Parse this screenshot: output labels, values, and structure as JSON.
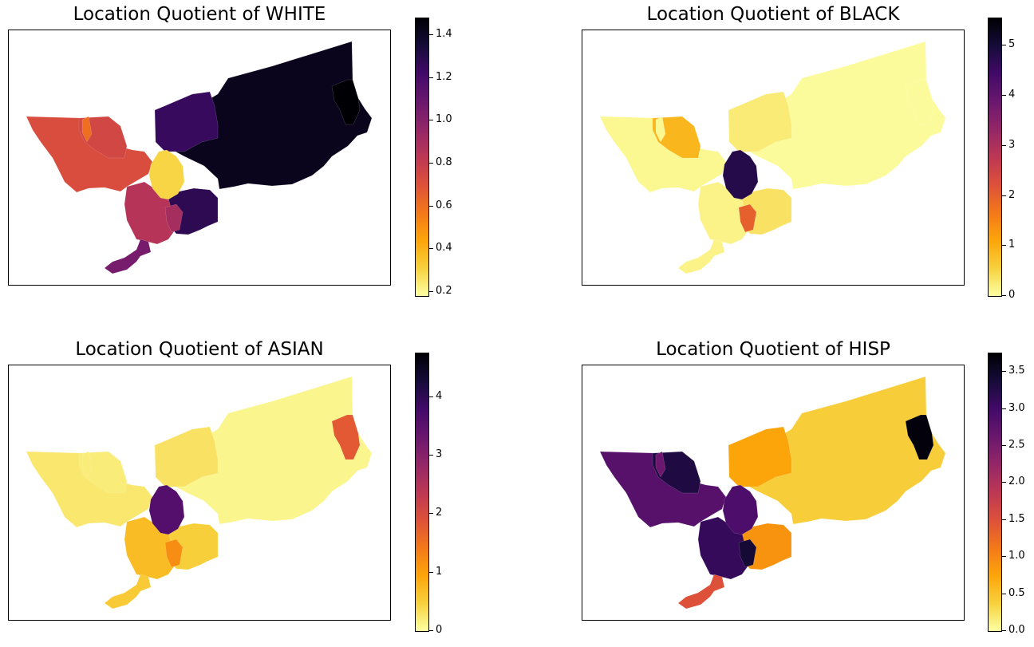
{
  "colormap": [
    "#fcffa4",
    "#f7d13d",
    "#fca50a",
    "#f37819",
    "#dd513a",
    "#bc3754",
    "#932667",
    "#6a176e",
    "#420a68",
    "#160b39",
    "#000004"
  ],
  "chart_data": [
    {
      "type": "choropleth",
      "title": "Location Quotient of WHITE",
      "variable": "WHITE",
      "colorbar": {
        "min": 0.18,
        "max": 1.48,
        "ticks": [
          0.2,
          0.4,
          0.6,
          0.8,
          1.0,
          1.2,
          1.4
        ],
        "tick_labels": [
          "0.2",
          "0.4",
          "0.6",
          "0.8",
          "1.0",
          "1.2",
          "1.4"
        ]
      },
      "regions": {
        "east": 1.42,
        "northeast_corner": 1.48,
        "center_north": 1.25,
        "center_south": 1.28,
        "west": 0.72,
        "west_mid": 0.75,
        "south_delta": 0.85,
        "south_tip": 1.05,
        "core": 0.3,
        "south_center": 0.9,
        "west_edge_strip": 0.6
      }
    },
    {
      "type": "choropleth",
      "title": "Location Quotient of BLACK",
      "variable": "BLACK",
      "colorbar": {
        "min": 0,
        "max": 5.55,
        "ticks": [
          0,
          1,
          2,
          3,
          4,
          5
        ],
        "tick_labels": [
          "0",
          "1",
          "2",
          "3",
          "4",
          "5"
        ]
      },
      "regions": {
        "east": 0.05,
        "northeast_corner": 0.05,
        "center_north": 0.25,
        "center_south": 0.35,
        "west": 0.1,
        "west_mid": 0.9,
        "south_delta": 0.15,
        "south_tip": 0.15,
        "core": 4.8,
        "south_center": 2.0,
        "west_edge_strip": 0.1
      }
    },
    {
      "type": "choropleth",
      "title": "Location Quotient of ASIAN",
      "variable": "ASIAN",
      "colorbar": {
        "min": 0,
        "max": 4.75,
        "ticks": [
          0,
          1,
          2,
          3,
          4
        ],
        "tick_labels": [
          "0",
          "1",
          "2",
          "3",
          "4"
        ]
      },
      "regions": {
        "east": 0.1,
        "northeast_corner": 1.8,
        "center_north": 0.3,
        "center_south": 0.5,
        "west": 0.25,
        "west_mid": 0.2,
        "south_delta": 0.7,
        "south_tip": 0.55,
        "core": 3.6,
        "south_center": 1.2,
        "west_edge_strip": 0.2
      }
    },
    {
      "type": "choropleth",
      "title": "Location Quotient of HISP",
      "variable": "HISP",
      "colorbar": {
        "min": 0,
        "max": 3.75,
        "ticks": [
          0,
          0.5,
          1.0,
          1.5,
          2.0,
          2.5,
          3.0,
          3.5
        ],
        "tick_labels": [
          "0.0",
          "0.5",
          "1.0",
          "1.5",
          "2.0",
          "2.5",
          "3.0",
          "3.5"
        ]
      },
      "regions": {
        "east": 0.4,
        "northeast_corner": 3.7,
        "center_north": 0.75,
        "center_south": 0.9,
        "west": 2.8,
        "west_mid": 3.3,
        "south_delta": 3.1,
        "south_tip": 1.5,
        "core": 2.9,
        "south_center": 3.4,
        "west_edge_strip": 2.6
      }
    }
  ]
}
